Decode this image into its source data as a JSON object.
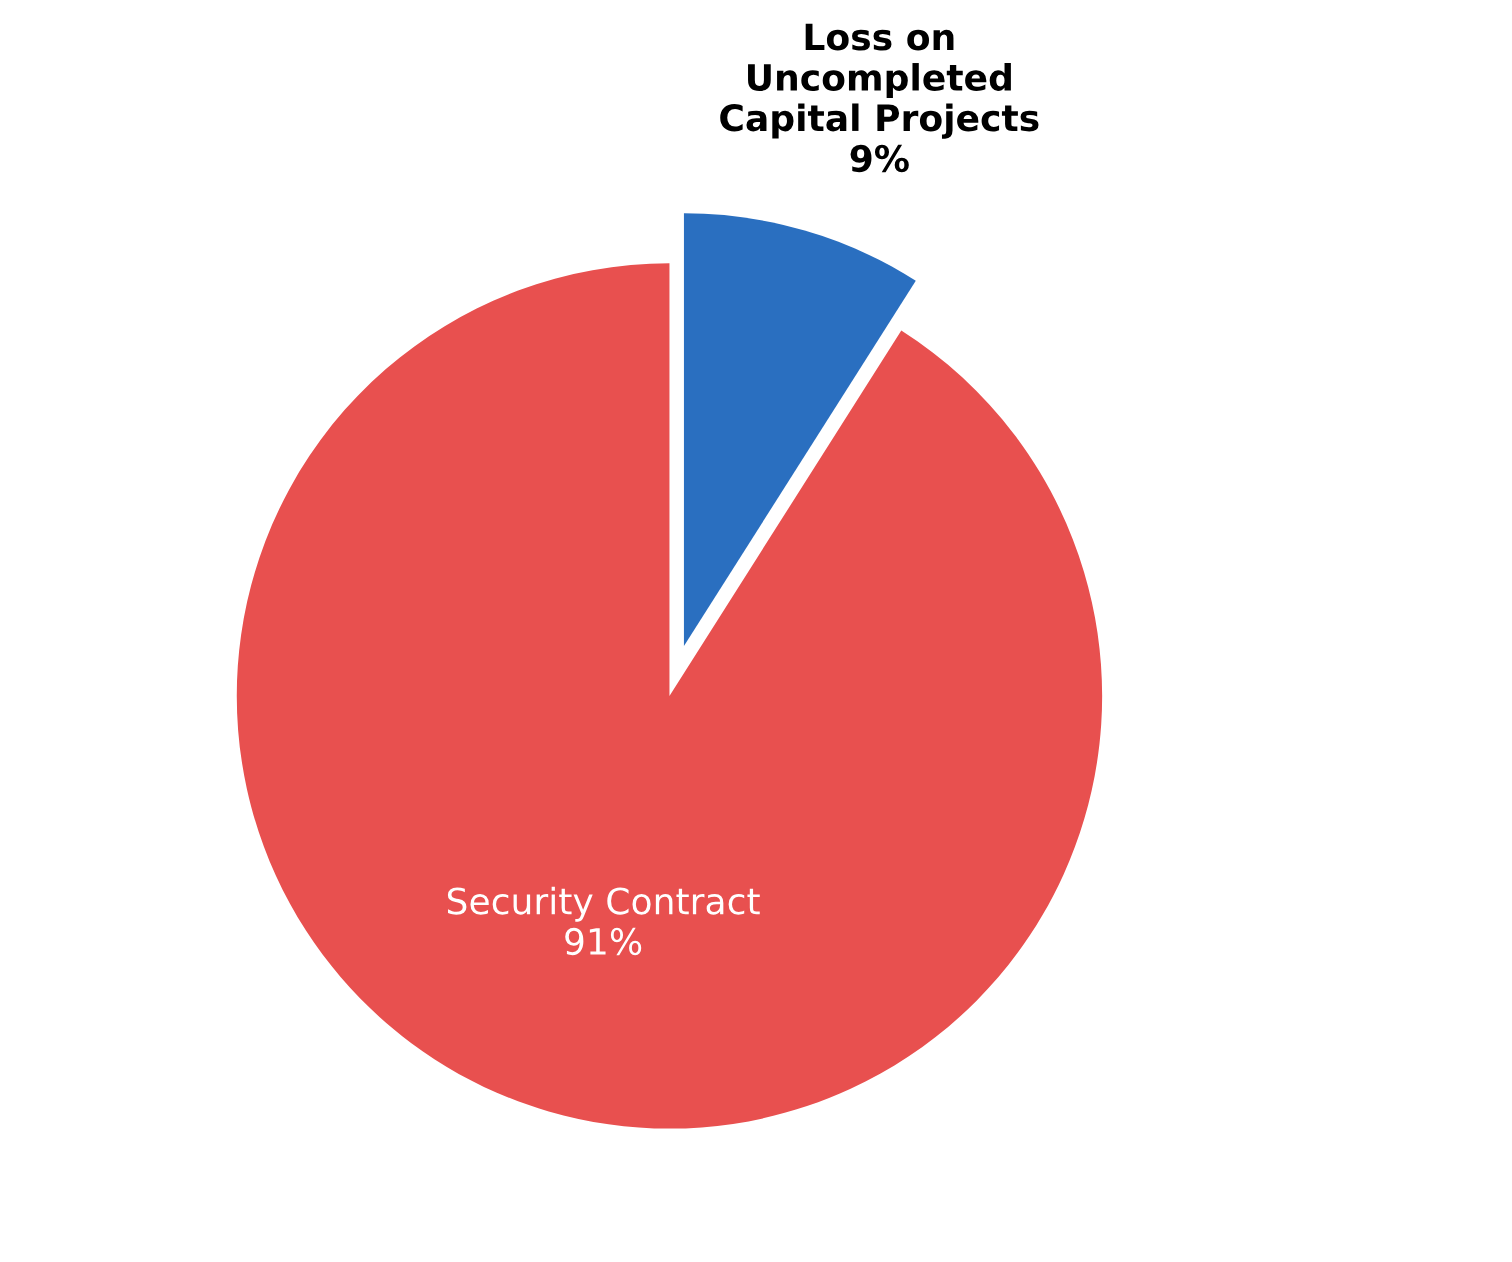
{
  "chart_data": {
    "type": "pie",
    "categories": [
      "Loss on\nUncompleted\nCapital Projects",
      "Security Contract"
    ],
    "values": [
      9,
      91
    ],
    "colors": [
      "#2a6fc0",
      "#e8504f"
    ],
    "value_labels": [
      "9%",
      "91%"
    ]
  }
}
